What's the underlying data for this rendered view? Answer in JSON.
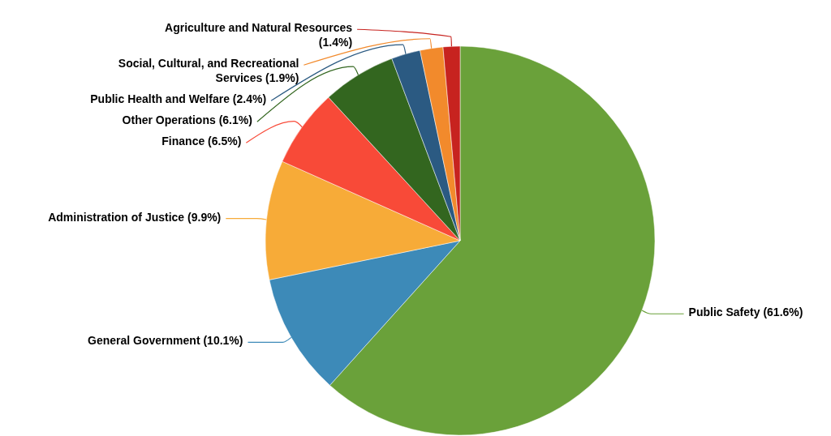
{
  "chart_data": {
    "type": "pie",
    "categories": [
      "Public Safety",
      "General Government",
      "Administration of Justice",
      "Finance",
      "Other Operations",
      "Public Health and Welfare",
      "Social, Cultural, and Recreational Services",
      "Agriculture and Natural Resources"
    ],
    "values": [
      61.6,
      10.1,
      9.9,
      6.5,
      6.1,
      2.4,
      1.9,
      1.4
    ],
    "value_labels": [
      "(61.6%)",
      "(10.1%)",
      "(9.9%)",
      "(6.5%)",
      "(6.1%)",
      "(2.4%)",
      "(1.9%)",
      "(1.4%)"
    ],
    "colors": [
      "#6aa13a",
      "#3d8ab8",
      "#f7ab38",
      "#f84a38",
      "#33661f",
      "#2b5a82",
      "#f28a2c",
      "#c7231f"
    ]
  }
}
